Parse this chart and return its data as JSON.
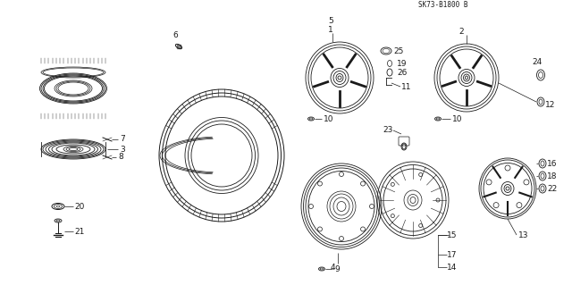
{
  "bg_color": "#ffffff",
  "line_color": "#1a1a1a",
  "fig_width": 6.4,
  "fig_height": 3.19,
  "dpi": 100,
  "reference": "SK73-B1800 B",
  "label_fontsize": 6.5
}
